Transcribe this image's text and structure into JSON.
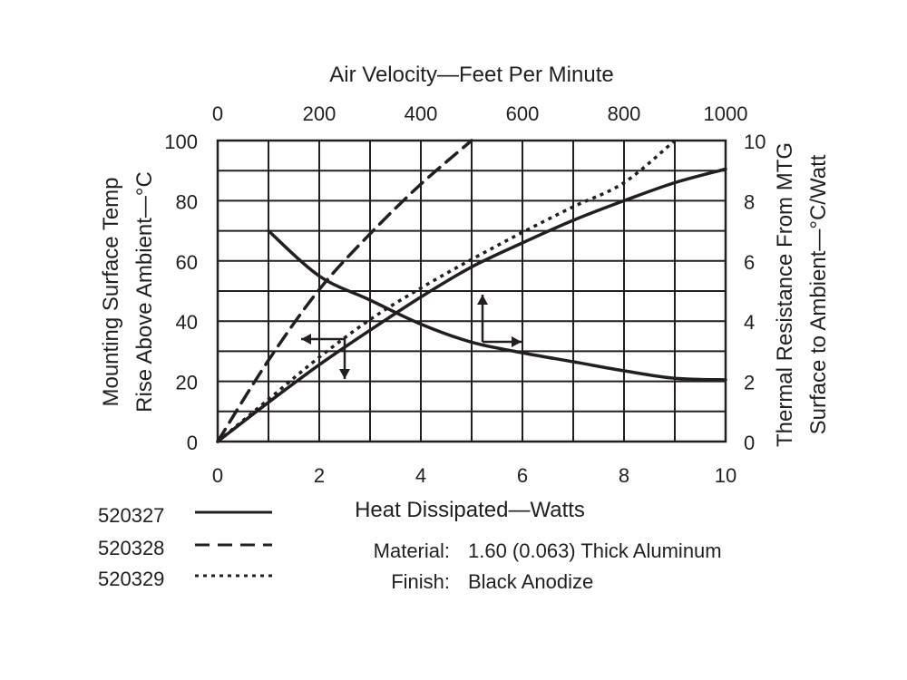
{
  "chart_data": {
    "type": "line",
    "title": "",
    "x_axis": {
      "label": "Heat Dissipated—Watts",
      "ticks": [
        "0",
        "2",
        "4",
        "6",
        "8",
        "10"
      ],
      "range": [
        0,
        10
      ]
    },
    "x2_axis": {
      "label": "Air Velocity—Feet Per Minute",
      "ticks": [
        "0",
        "200",
        "400",
        "600",
        "800",
        "1000"
      ],
      "range": [
        0,
        1000
      ]
    },
    "y_axis": {
      "label_lines": [
        "Mounting Surface Temp",
        "Rise Above Ambient—°C"
      ],
      "ticks": [
        "0",
        "20",
        "40",
        "60",
        "80",
        "100"
      ],
      "range": [
        0,
        100
      ]
    },
    "y2_axis": {
      "label_lines": [
        "Thermal Resistance From MTG",
        "Surface to Ambient—°C/Watt"
      ],
      "ticks": [
        "0",
        "2",
        "4",
        "6",
        "8",
        "10"
      ],
      "range": [
        0,
        10
      ]
    },
    "grid": true,
    "series": [
      {
        "name": "520327",
        "style": "solid",
        "axes": "bottom-left",
        "x": [
          0,
          1,
          2,
          3,
          4,
          5,
          6,
          7,
          8,
          9,
          10
        ],
        "y": [
          0,
          13,
          25.5,
          37,
          48,
          58,
          66,
          73.5,
          80,
          86,
          90.5
        ]
      },
      {
        "name": "520328",
        "style": "dashed",
        "axes": "bottom-left",
        "x": [
          0,
          1,
          2,
          3,
          4,
          5
        ],
        "y": [
          0,
          27,
          50.5,
          69,
          85.5,
          100
        ]
      },
      {
        "name": "520329",
        "style": "dotted",
        "axes": "bottom-left",
        "x": [
          0,
          1,
          2,
          3,
          4,
          5,
          6,
          7,
          8,
          9
        ],
        "y": [
          0,
          14,
          28,
          40.5,
          51,
          60.5,
          69.5,
          78,
          86,
          100
        ]
      },
      {
        "name": "520327",
        "style": "solid",
        "axes": "top-right",
        "x": [
          100,
          200,
          300,
          400,
          500,
          600,
          700,
          800,
          900,
          1000
        ],
        "y": [
          7.0,
          5.5,
          4.7,
          3.9,
          3.3,
          2.95,
          2.65,
          2.35,
          2.1,
          2.05
        ]
      }
    ],
    "legend": {
      "placement": "bottom-left",
      "entries": [
        {
          "name": "520327",
          "style": "solid"
        },
        {
          "name": "520328",
          "style": "dashed"
        },
        {
          "name": "520329",
          "style": "dotted"
        }
      ]
    },
    "annotations": [
      {
        "label": "Material:",
        "value": "1.60 (0.063) Thick Aluminum"
      },
      {
        "label": "Finish:",
        "value": "Black Anodize"
      }
    ]
  }
}
